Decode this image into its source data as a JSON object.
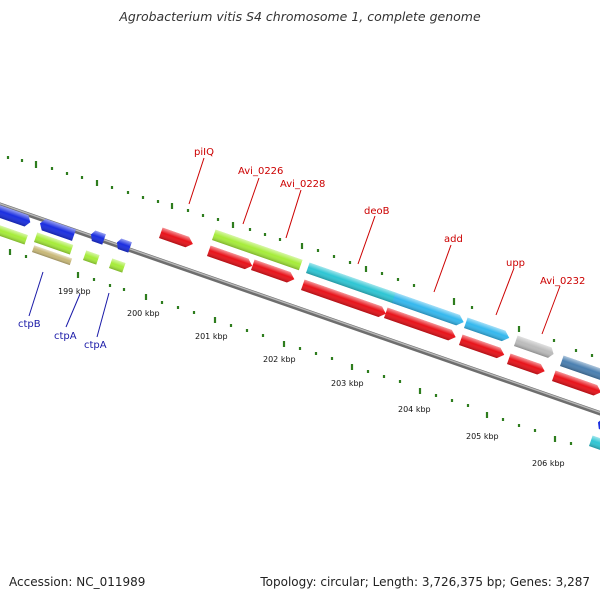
{
  "title": "Agrobacterium vitis S4 chromosome 1, complete genome",
  "footer": {
    "accession": "Accession: NC_011989",
    "topology": "Topology: circular; Length: 3,726,375 bp; Genes: 3,287"
  },
  "colors": {
    "label_red": "#cc0000",
    "label_blue": "#1a1aa8",
    "tick_green": "#2e7d1e",
    "backbone": "#888888",
    "red_gene": "#e8131a",
    "lime_gene": "#a6ec3a",
    "cyan_gene": "#2ec6d4",
    "sky_gene": "#35b8ee",
    "blue_gene": "#1a2ee0",
    "gray_gene": "#bcbcbc",
    "steel_gene": "#4a7fb0",
    "tan_gene": "#c8b878"
  },
  "genes_forward": [
    {
      "name": "piIQ",
      "color": "red_gene"
    },
    {
      "name": "Avi_0226",
      "color": "lime_gene"
    },
    {
      "name": "Avi_0228",
      "color": "lime_gene"
    },
    {
      "name": "deoB",
      "color": "cyan_gene"
    },
    {
      "name": "add",
      "color": "sky_gene"
    },
    {
      "name": "upp",
      "color": "sky_gene"
    },
    {
      "name": "Avi_0232",
      "color": "gray_gene"
    }
  ],
  "genes_reverse": [
    {
      "name": "ctpB",
      "color": "tan_gene"
    },
    {
      "name": "ctpA",
      "color": "lime_gene"
    },
    {
      "name": "ctpA",
      "color": "lime_gene"
    }
  ],
  "ticks": [
    {
      "label": "199 kbp"
    },
    {
      "label": "200 kbp"
    },
    {
      "label": "201 kbp"
    },
    {
      "label": "202 kbp"
    },
    {
      "label": "203 kbp"
    },
    {
      "label": "204 kbp"
    },
    {
      "label": "205 kbp"
    },
    {
      "label": "206 kbp"
    }
  ]
}
